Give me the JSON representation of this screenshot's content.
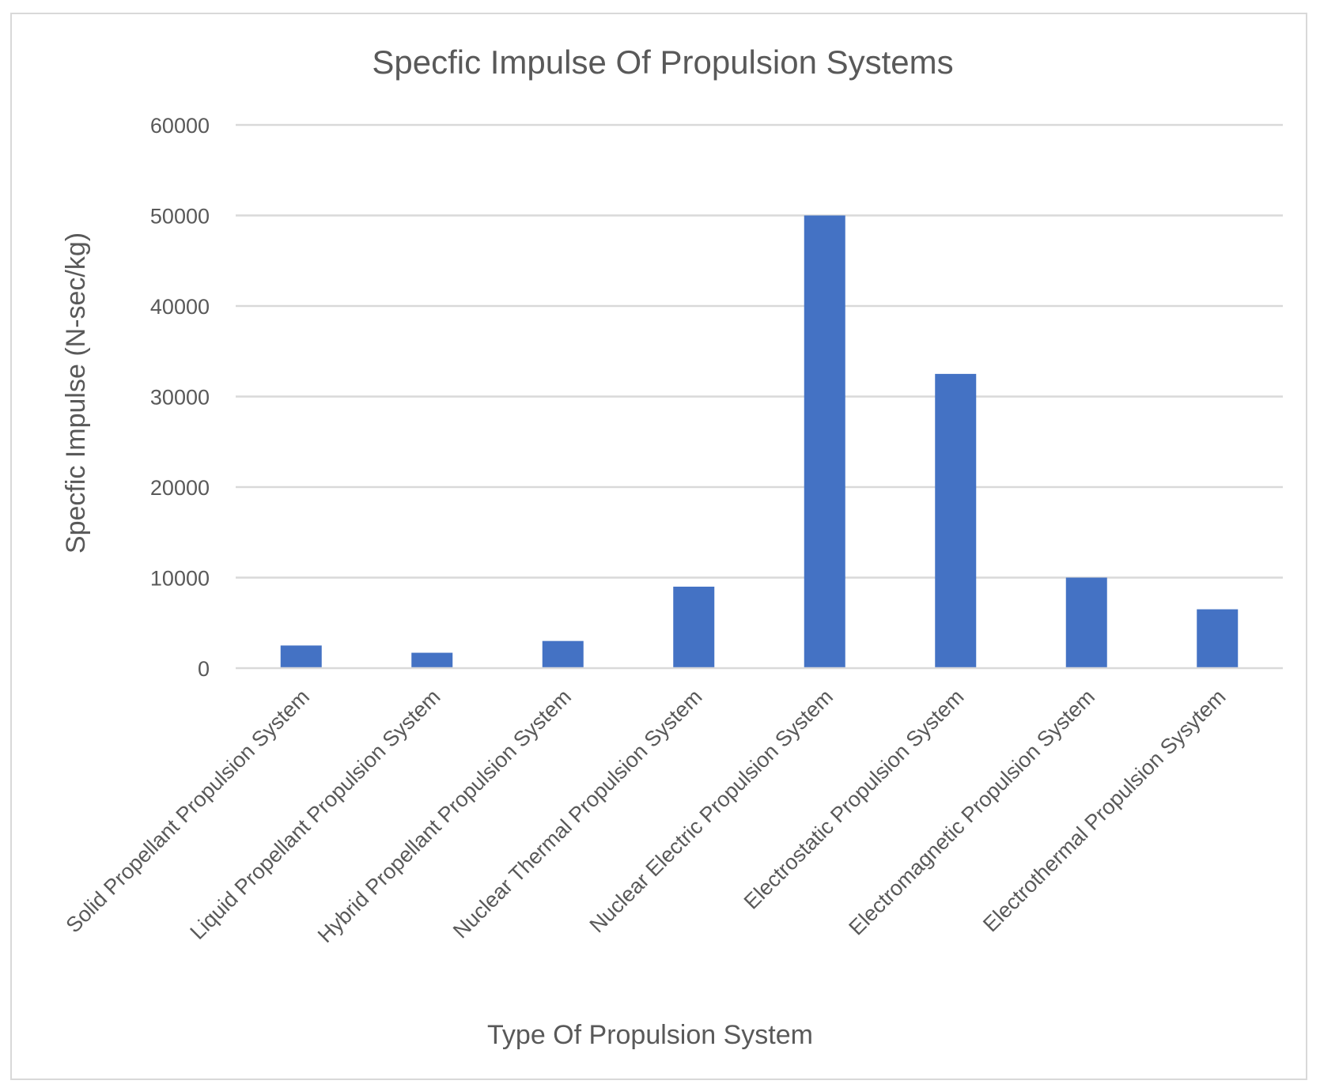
{
  "chart_data": {
    "type": "bar",
    "title": "Specfic Impulse Of Propulsion Systems",
    "xlabel": "Type Of Propulsion System",
    "ylabel": "Specfic Impulse (N-sec/kg)",
    "categories": [
      "Solid Propellant Propulsion System",
      "Liquid Propellant Propulsion System",
      "Hybrid Propellant Propulsion System",
      "Nuclear Thermal Propulsion System",
      "Nuclear Electric Propulsion System",
      "Electrostatic Propulsion System",
      "Electromagnetic Propulsion System",
      "Electrothermal Propulsion Sysytem"
    ],
    "values": [
      2500,
      1700,
      3000,
      9000,
      50000,
      32500,
      10000,
      6500
    ],
    "ylim": [
      0,
      60000
    ],
    "yticks": [
      "0",
      "10000",
      "20000",
      "30000",
      "40000",
      "50000",
      "60000"
    ],
    "grid": true,
    "legend": "none",
    "bar_color": "#4472c4"
  }
}
